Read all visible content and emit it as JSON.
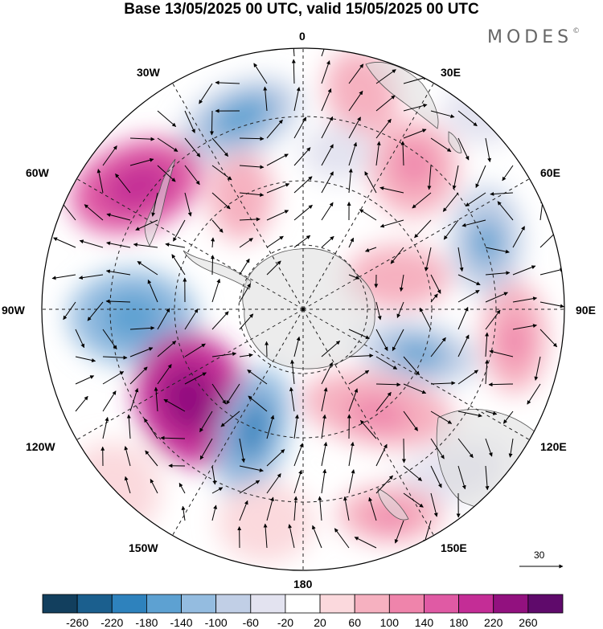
{
  "title": "Base 13/05/2025 00 UTC, valid 15/05/2025 00 UTC",
  "brand": {
    "name": "MODES",
    "mark": "©"
  },
  "longitude_labels": [
    {
      "id": "0",
      "text": "0"
    },
    {
      "id": "30e",
      "text": "30E"
    },
    {
      "id": "60e",
      "text": "60E"
    },
    {
      "id": "90e",
      "text": "90E"
    },
    {
      "id": "120e",
      "text": "120E"
    },
    {
      "id": "150e",
      "text": "150E"
    },
    {
      "id": "180",
      "text": "180"
    },
    {
      "id": "150w",
      "text": "150W"
    },
    {
      "id": "120w",
      "text": "120W"
    },
    {
      "id": "90w",
      "text": "90W"
    },
    {
      "id": "60w",
      "text": "60W"
    },
    {
      "id": "30w",
      "text": "30W"
    }
  ],
  "vector_reference": {
    "value": "30"
  },
  "colorbar": {
    "colors": [
      "#123f5e",
      "#1b5f8e",
      "#2e82bd",
      "#5da1d2",
      "#94bce0",
      "#c1cfe6",
      "#e3e3f0",
      "#ffffff",
      "#fbd9dd",
      "#f6b1c0",
      "#ef84ab",
      "#e05aa4",
      "#c42d96",
      "#92117f",
      "#5f0a6b"
    ],
    "tick_labels": [
      "-260",
      "-220",
      "-180",
      "-140",
      "-100",
      "-60",
      "-20",
      "20",
      "60",
      "100",
      "140",
      "180",
      "220",
      "260"
    ]
  },
  "projection": {
    "type": "south-polar-stereographic"
  }
}
